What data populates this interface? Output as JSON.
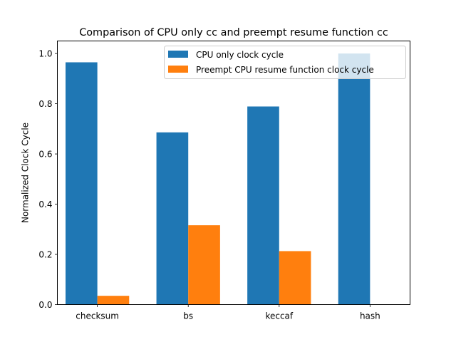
{
  "chart_data": {
    "type": "bar",
    "title": "Comparison of CPU only cc and preempt resume function cc",
    "xlabel": "",
    "ylabel": "Normalized Clock Cycle",
    "categories": [
      "checksum",
      "bs",
      "keccaf",
      "hash"
    ],
    "series": [
      {
        "name": "CPU only clock cycle",
        "color": "#1f77b4",
        "values": [
          0.965,
          0.686,
          0.789,
          1.0
        ]
      },
      {
        "name": "Preempt CPU resume function clock cycle",
        "color": "#ff7f0e",
        "values": [
          0.035,
          0.316,
          0.213,
          0.0
        ]
      }
    ],
    "ylim": [
      0,
      1.05
    ],
    "yticks": [
      "0.0",
      "0.2",
      "0.4",
      "0.6",
      "0.8",
      "1.0"
    ],
    "grid": false,
    "legend_position": "top-right"
  }
}
